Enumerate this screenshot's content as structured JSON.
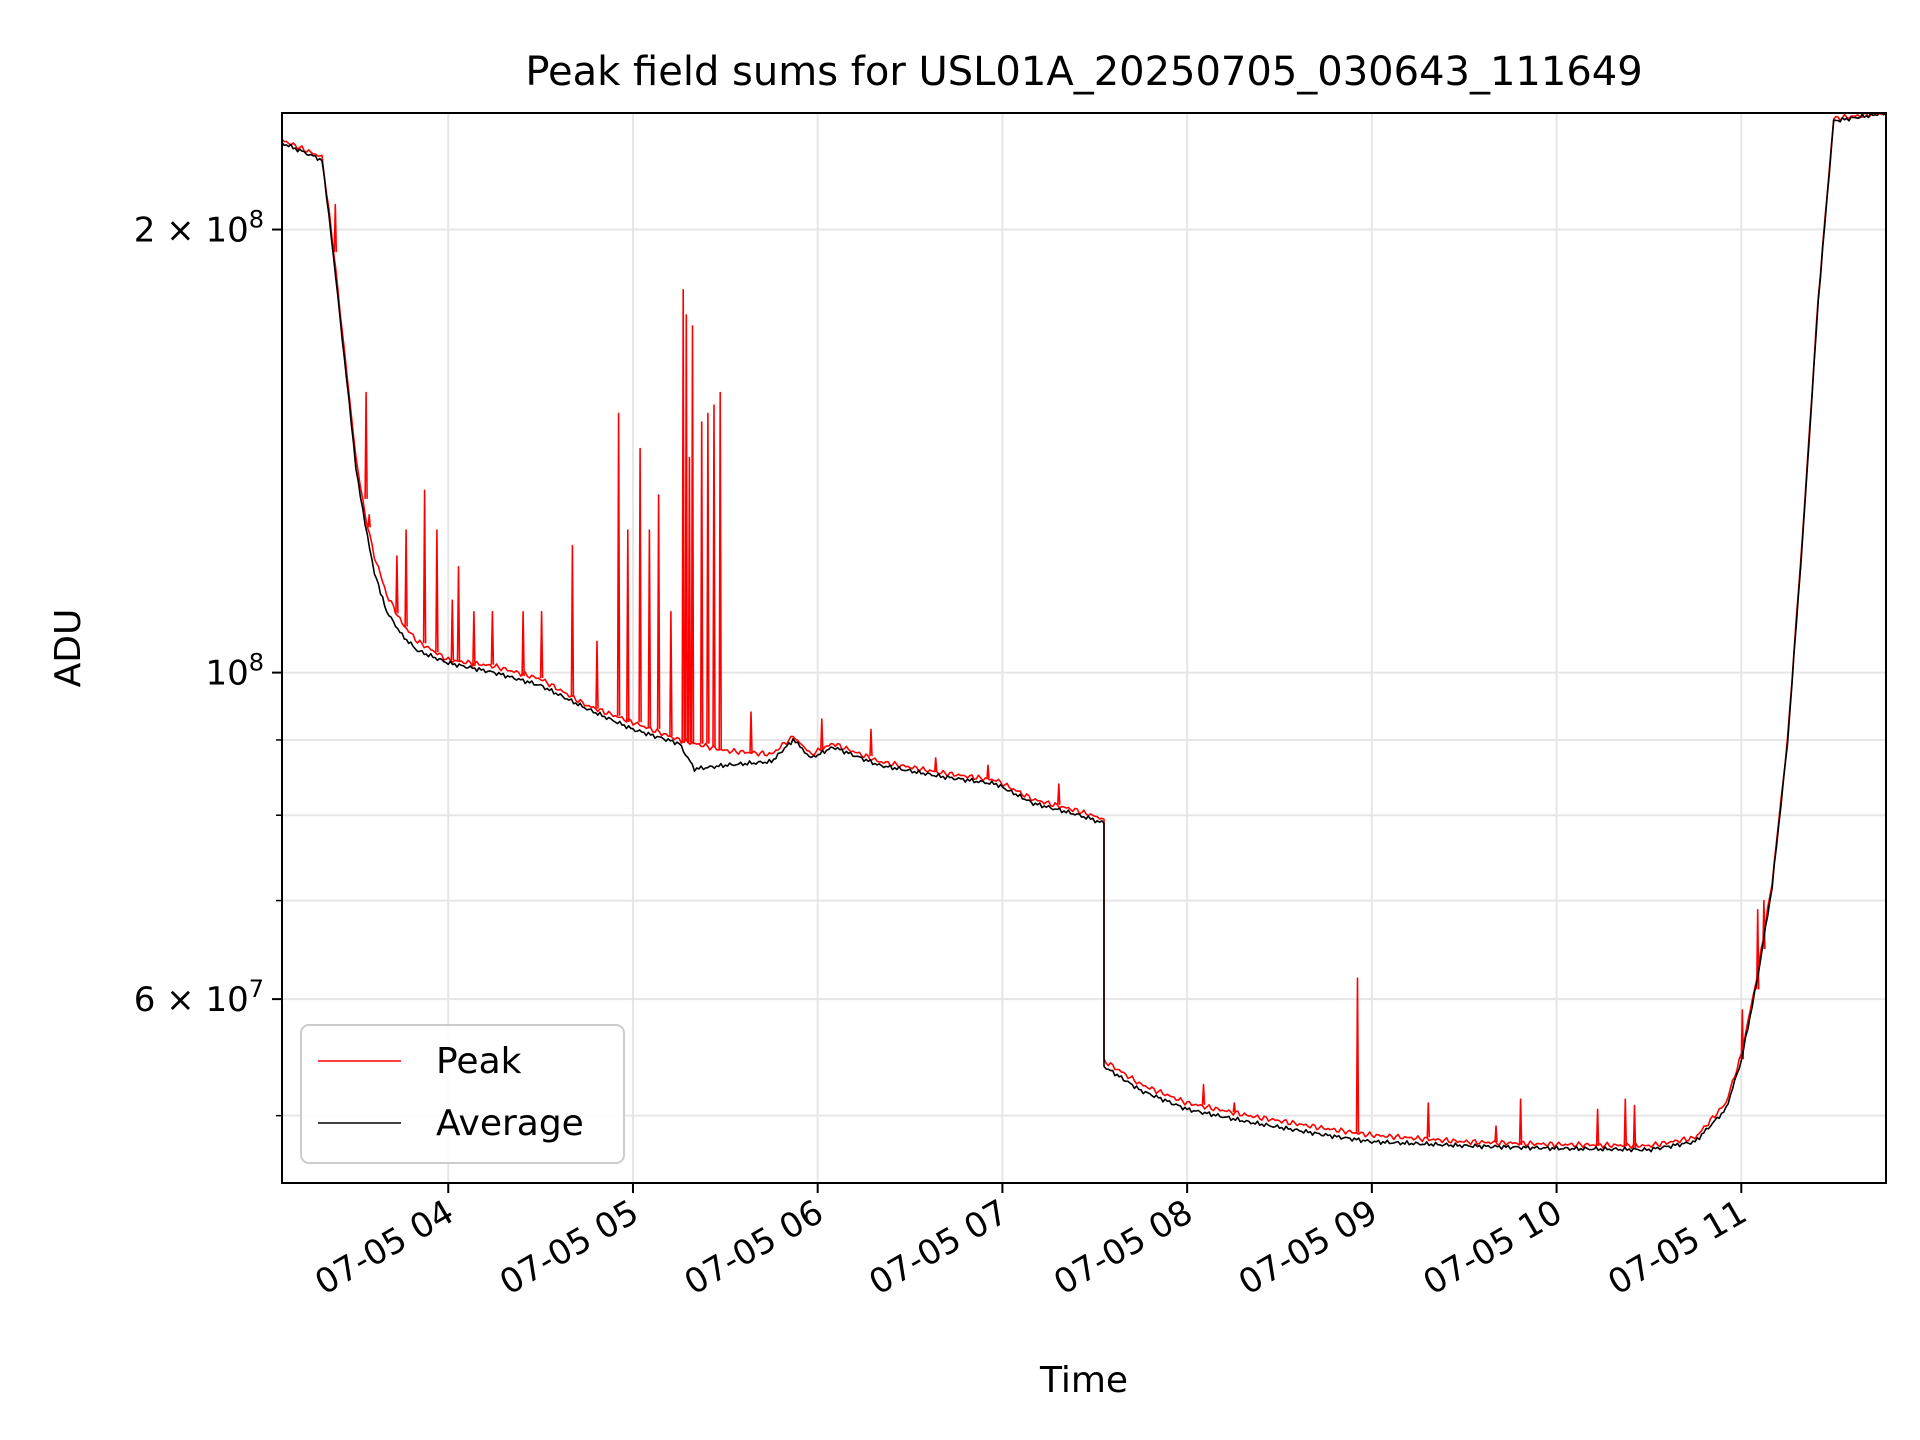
{
  "chart_data": {
    "type": "line",
    "title": "Peak field sums for USL01A_20250705_030643_111649",
    "xlabel": "Time",
    "ylabel": "ADU",
    "y_scale": "log",
    "grid": true,
    "legend_position": "lower-left",
    "x_range": [
      "2025-07-05 03:06",
      "2025-07-05 11:47"
    ],
    "y_range": [
      45000000,
      240000000
    ],
    "x_ticks": [
      "07-05 04",
      "07-05 05",
      "07-05 06",
      "07-05 07",
      "07-05 08",
      "07-05 09",
      "07-05 10",
      "07-05 11"
    ],
    "x_tick_times": [
      "2025-07-05 04:00",
      "2025-07-05 05:00",
      "2025-07-05 06:00",
      "2025-07-05 07:00",
      "2025-07-05 08:00",
      "2025-07-05 09:00",
      "2025-07-05 10:00",
      "2025-07-05 11:00"
    ],
    "y_major_ticks": [
      {
        "value": 200000000,
        "mantissa": "2",
        "exponent": "8"
      },
      {
        "value": 100000000,
        "mantissa": "",
        "exponent": "8"
      },
      {
        "value": 60000000,
        "mantissa": "6",
        "exponent": "7"
      }
    ],
    "y_minor_ticks": [
      50000000,
      70000000,
      80000000,
      90000000
    ],
    "series": [
      {
        "name": "Peak",
        "color": "#ff0000",
        "points": [
          [
            "2025-07-05 03:06",
            230000000
          ],
          [
            "2025-07-05 03:19",
            224000000
          ],
          [
            "2025-07-05 03:22",
            200000000
          ],
          [
            "2025-07-05 03:27",
            160000000
          ],
          [
            "2025-07-05 03:30",
            140000000
          ],
          [
            "2025-07-05 03:33",
            128000000
          ],
          [
            "2025-07-05 03:36",
            120000000
          ],
          [
            "2025-07-05 03:40",
            113000000
          ],
          [
            "2025-07-05 03:45",
            108000000
          ],
          [
            "2025-07-05 03:50",
            105000000
          ],
          [
            "2025-07-05 04:00",
            102000000
          ],
          [
            "2025-07-05 04:15",
            101000000
          ],
          [
            "2025-07-05 04:30",
            99000000
          ],
          [
            "2025-07-05 04:45",
            95000000
          ],
          [
            "2025-07-05 05:00",
            92500000
          ],
          [
            "2025-07-05 05:15",
            90000000
          ],
          [
            "2025-07-05 05:30",
            88500000
          ],
          [
            "2025-07-05 05:45",
            88000000
          ],
          [
            "2025-07-05 05:52",
            90500000
          ],
          [
            "2025-07-05 05:58",
            88000000
          ],
          [
            "2025-07-05 06:05",
            89500000
          ],
          [
            "2025-07-05 06:20",
            87000000
          ],
          [
            "2025-07-05 06:40",
            85500000
          ],
          [
            "2025-07-05 06:58",
            84500000
          ],
          [
            "2025-07-05 07:10",
            82000000
          ],
          [
            "2025-07-05 07:25",
            80500000
          ],
          [
            "2025-07-05 07:33",
            79500000
          ],
          [
            "2025-07-05 07:33",
            54500000
          ],
          [
            "2025-07-05 07:45",
            52500000
          ],
          [
            "2025-07-05 08:00",
            51000000
          ],
          [
            "2025-07-05 08:20",
            50000000
          ],
          [
            "2025-07-05 08:45",
            49000000
          ],
          [
            "2025-07-05 09:00",
            48500000
          ],
          [
            "2025-07-05 09:30",
            48000000
          ],
          [
            "2025-07-05 10:00",
            47800000
          ],
          [
            "2025-07-05 10:30",
            47700000
          ],
          [
            "2025-07-05 10:45",
            48300000
          ],
          [
            "2025-07-05 10:55",
            51000000
          ],
          [
            "2025-07-05 11:00",
            55000000
          ],
          [
            "2025-07-05 11:05",
            62000000
          ],
          [
            "2025-07-05 11:10",
            72000000
          ],
          [
            "2025-07-05 11:15",
            90000000
          ],
          [
            "2025-07-05 11:20",
            125000000
          ],
          [
            "2025-07-05 11:25",
            180000000
          ],
          [
            "2025-07-05 11:30",
            238000000
          ],
          [
            "2025-07-05 11:47",
            240000000
          ]
        ],
        "spikes": [
          [
            "2025-07-05 03:23",
            208000000
          ],
          [
            "2025-07-05 03:33",
            155000000
          ],
          [
            "2025-07-05 03:34",
            128000000
          ],
          [
            "2025-07-05 03:43",
            120000000
          ],
          [
            "2025-07-05 03:46",
            125000000
          ],
          [
            "2025-07-05 03:52",
            133000000
          ],
          [
            "2025-07-05 03:56",
            125000000
          ],
          [
            "2025-07-05 04:01",
            112000000
          ],
          [
            "2025-07-05 04:03",
            118000000
          ],
          [
            "2025-07-05 04:08",
            110000000
          ],
          [
            "2025-07-05 04:14",
            110000000
          ],
          [
            "2025-07-05 04:24",
            110000000
          ],
          [
            "2025-07-05 04:30",
            110000000
          ],
          [
            "2025-07-05 04:40",
            122000000
          ],
          [
            "2025-07-05 04:48",
            105000000
          ],
          [
            "2025-07-05 04:55",
            150000000
          ],
          [
            "2025-07-05 04:58",
            125000000
          ],
          [
            "2025-07-05 05:02",
            142000000
          ],
          [
            "2025-07-05 05:05",
            125000000
          ],
          [
            "2025-07-05 05:08",
            132000000
          ],
          [
            "2025-07-05 05:12",
            110000000
          ],
          [
            "2025-07-05 05:16",
            182000000
          ],
          [
            "2025-07-05 05:17",
            175000000
          ],
          [
            "2025-07-05 05:18",
            140000000
          ],
          [
            "2025-07-05 05:19",
            172000000
          ],
          [
            "2025-07-05 05:22",
            148000000
          ],
          [
            "2025-07-05 05:24",
            150000000
          ],
          [
            "2025-07-05 05:26",
            152000000
          ],
          [
            "2025-07-05 05:28",
            155000000
          ],
          [
            "2025-07-05 05:38",
            94000000
          ],
          [
            "2025-07-05 06:01",
            93000000
          ],
          [
            "2025-07-05 06:17",
            91500000
          ],
          [
            "2025-07-05 06:38",
            87500000
          ],
          [
            "2025-07-05 06:55",
            86500000
          ],
          [
            "2025-07-05 07:18",
            84000000
          ],
          [
            "2025-07-05 08:05",
            52500000
          ],
          [
            "2025-07-05 08:15",
            51000000
          ],
          [
            "2025-07-05 08:55",
            62000000
          ],
          [
            "2025-07-05 09:18",
            51000000
          ],
          [
            "2025-07-05 09:40",
            49200000
          ],
          [
            "2025-07-05 09:48",
            51300000
          ],
          [
            "2025-07-05 10:13",
            50500000
          ],
          [
            "2025-07-05 10:22",
            51300000
          ],
          [
            "2025-07-05 10:25",
            50800000
          ],
          [
            "2025-07-05 11:00",
            59000000
          ],
          [
            "2025-07-05 11:05",
            69000000
          ],
          [
            "2025-07-05 11:07",
            70000000
          ]
        ]
      },
      {
        "name": "Average",
        "color": "#000000",
        "points": [
          [
            "2025-07-05 03:06",
            229000000
          ],
          [
            "2025-07-05 03:19",
            223000000
          ],
          [
            "2025-07-05 03:22",
            198000000
          ],
          [
            "2025-07-05 03:27",
            158000000
          ],
          [
            "2025-07-05 03:30",
            138000000
          ],
          [
            "2025-07-05 03:33",
            126000000
          ],
          [
            "2025-07-05 03:36",
            117000000
          ],
          [
            "2025-07-05 03:40",
            110000000
          ],
          [
            "2025-07-05 03:45",
            106000000
          ],
          [
            "2025-07-05 03:50",
            103500000
          ],
          [
            "2025-07-05 04:00",
            101500000
          ],
          [
            "2025-07-05 04:15",
            100000000
          ],
          [
            "2025-07-05 04:30",
            98000000
          ],
          [
            "2025-07-05 04:45",
            94500000
          ],
          [
            "2025-07-05 05:00",
            91500000
          ],
          [
            "2025-07-05 05:15",
            89500000
          ],
          [
            "2025-07-05 05:20",
            86000000
          ],
          [
            "2025-07-05 05:30",
            86500000
          ],
          [
            "2025-07-05 05:45",
            87000000
          ],
          [
            "2025-07-05 05:52",
            90000000
          ],
          [
            "2025-07-05 05:58",
            87500000
          ],
          [
            "2025-07-05 06:05",
            89000000
          ],
          [
            "2025-07-05 06:20",
            86500000
          ],
          [
            "2025-07-05 06:40",
            85000000
          ],
          [
            "2025-07-05 06:58",
            84000000
          ],
          [
            "2025-07-05 07:10",
            81500000
          ],
          [
            "2025-07-05 07:25",
            80000000
          ],
          [
            "2025-07-05 07:33",
            79000000
          ],
          [
            "2025-07-05 07:33",
            54000000
          ],
          [
            "2025-07-05 07:45",
            52000000
          ],
          [
            "2025-07-05 08:00",
            50500000
          ],
          [
            "2025-07-05 08:20",
            49500000
          ],
          [
            "2025-07-05 08:45",
            48500000
          ],
          [
            "2025-07-05 09:00",
            48000000
          ],
          [
            "2025-07-05 09:30",
            47700000
          ],
          [
            "2025-07-05 10:00",
            47500000
          ],
          [
            "2025-07-05 10:30",
            47400000
          ],
          [
            "2025-07-05 10:45",
            48000000
          ],
          [
            "2025-07-05 10:55",
            50500000
          ],
          [
            "2025-07-05 11:00",
            54500000
          ],
          [
            "2025-07-05 11:05",
            61500000
          ],
          [
            "2025-07-05 11:10",
            71500000
          ],
          [
            "2025-07-05 11:15",
            89500000
          ],
          [
            "2025-07-05 11:20",
            124000000
          ],
          [
            "2025-07-05 11:25",
            179000000
          ],
          [
            "2025-07-05 11:30",
            237000000
          ],
          [
            "2025-07-05 11:47",
            240000000
          ]
        ]
      }
    ]
  }
}
